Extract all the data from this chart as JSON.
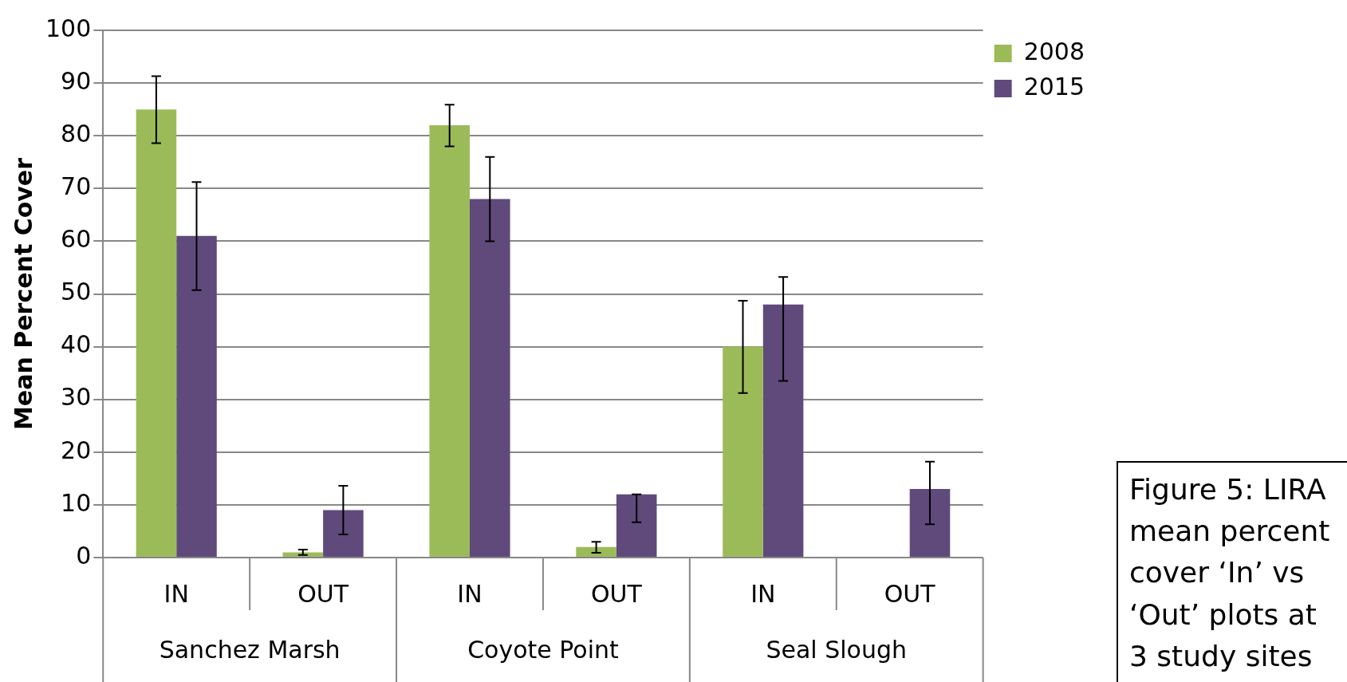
{
  "chart_data": {
    "type": "bar",
    "ylabel": "Mean Percent Cover",
    "categories": [
      "IN",
      "OUT",
      "IN",
      "OUT",
      "IN",
      "OUT"
    ],
    "series": [
      {
        "name": "2008",
        "color": "#9bbb59",
        "values": [
          85,
          1,
          82,
          2,
          40,
          null
        ],
        "errors": [
          [
            78.6,
            91.3
          ],
          [
            0.5,
            1.5
          ],
          [
            78,
            85.9
          ],
          [
            0.9,
            3
          ],
          [
            31.2,
            48.7
          ],
          null
        ]
      },
      {
        "name": "2015",
        "color": "#604a7b",
        "values": [
          61,
          9,
          68,
          12,
          48,
          13
        ],
        "errors": [
          [
            50.7,
            71.2
          ],
          [
            4.4,
            13.6
          ],
          [
            60,
            76
          ],
          [
            6.7,
            12
          ],
          [
            33.5,
            53.2
          ],
          [
            6.3,
            18.2
          ]
        ]
      }
    ],
    "ylim": [
      0,
      100
    ],
    "yticks": [
      0,
      10,
      20,
      30,
      40,
      50,
      60,
      70,
      80,
      90,
      100
    ],
    "grid": "y",
    "legend": "top right",
    "annotations": [
      "Sanchez Marsh",
      "Coyote Point",
      "Seal Slough",
      "Figure 5: LIRA mean percent cover ‘In’ vs ‘Out’ plots at 3 study sites"
    ]
  }
}
